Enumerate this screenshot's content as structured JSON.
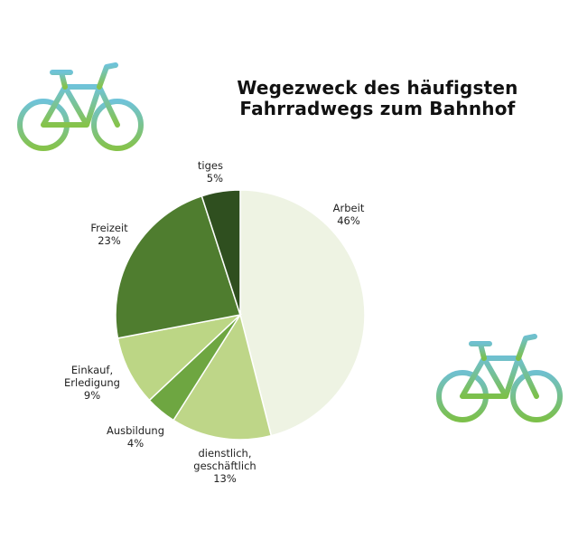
{
  "title_line1": "Wegezweck des häufigsten",
  "title_line2": "Fahrradwegs zum Bahnhof",
  "icons": {
    "bike_top_left": "bicycle-icon",
    "bike_bottom_right": "bicycle-icon"
  },
  "colors": {
    "bike_top": "#6fc0cf",
    "bike_bottom": "#7cc04a"
  },
  "chart_data": {
    "type": "pie",
    "title": "Wegezweck des häufigsten Fahrradwegs zum Bahnhof",
    "slices": [
      {
        "label_lines": [
          "Arbeit"
        ],
        "value": 46,
        "value_text": "46%",
        "color": "#eef3e3"
      },
      {
        "label_lines": [
          "dienstlich,",
          "geschäftlich"
        ],
        "value": 13,
        "value_text": "13%",
        "color": "#bed688"
      },
      {
        "label_lines": [
          "Ausbildung"
        ],
        "value": 4,
        "value_text": "4%",
        "color": "#6ea641"
      },
      {
        "label_lines": [
          "Einkauf,",
          "Erledigung"
        ],
        "value": 9,
        "value_text": "9%",
        "color": "#bcd685"
      },
      {
        "label_lines": [
          "Freizeit"
        ],
        "value": 23,
        "value_text": "23%",
        "color": "#4f7d2f"
      },
      {
        "label_lines": [
          "tiges"
        ],
        "value": 5,
        "value_text": "5%",
        "color": "#2f4f1f"
      }
    ]
  }
}
